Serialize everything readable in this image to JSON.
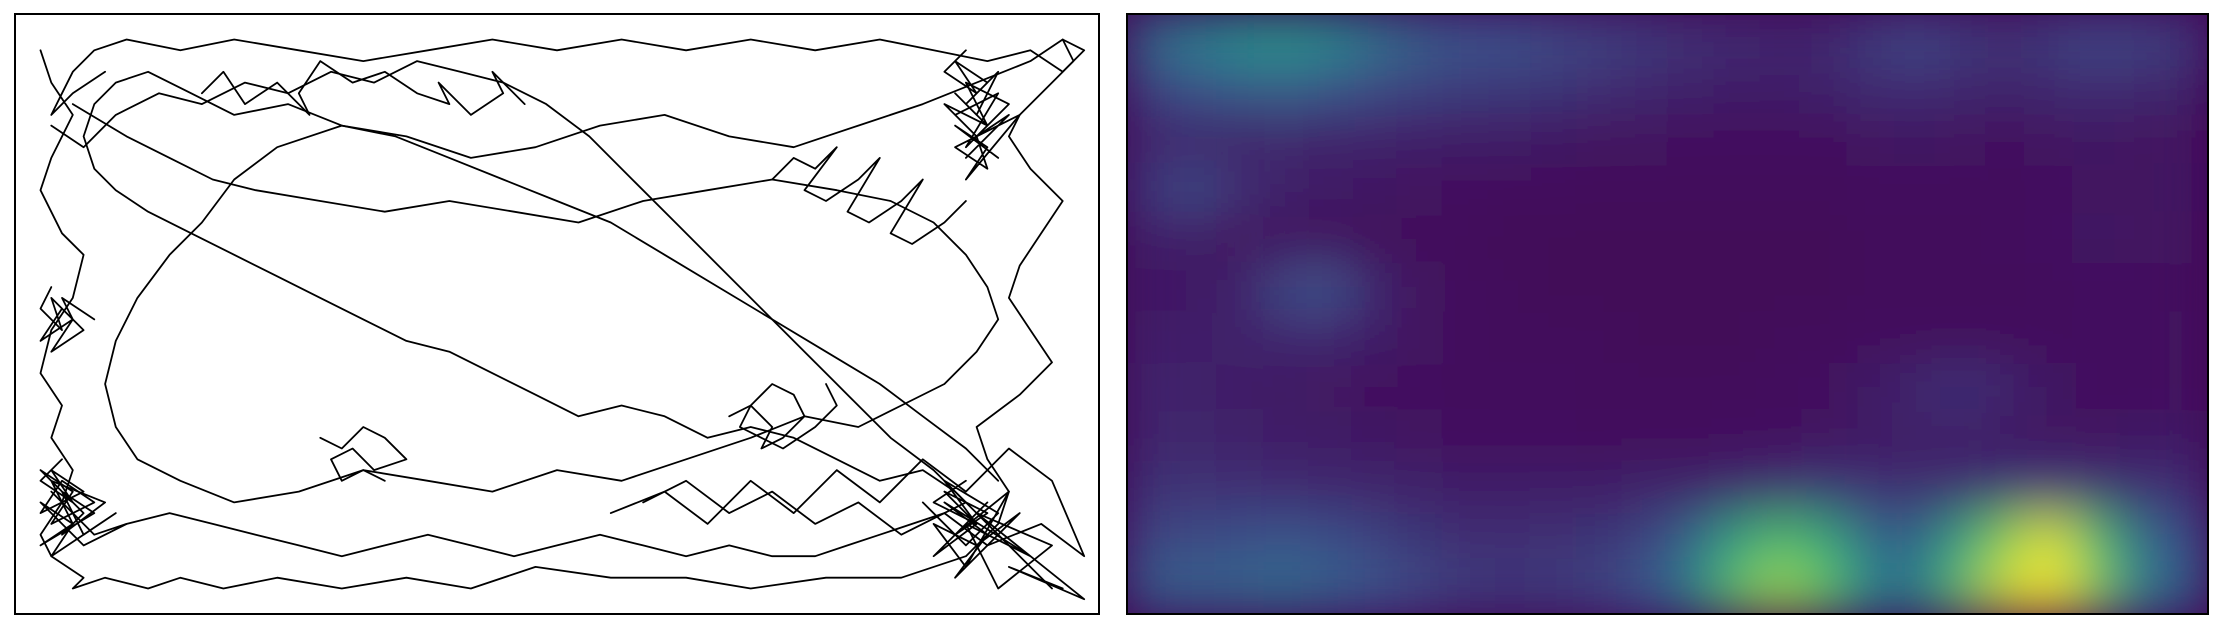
{
  "figure": {
    "background": "#ffffff",
    "frame_color": "#000000"
  },
  "chart_data": [
    {
      "type": "line",
      "panel": "trajectory",
      "axes_visible": false,
      "ticks_visible": false,
      "grid": false,
      "line_color": "#000000",
      "xlim": [
        0,
        100
      ],
      "ylim": [
        0,
        55
      ],
      "series": [
        {
          "x": [
            2,
            3,
            5,
            3,
            2,
            4,
            6,
            5,
            3,
            2,
            4,
            3,
            5,
            4,
            2,
            3,
            6,
            5,
            8,
            12,
            15,
            19,
            24,
            30,
            36,
            42,
            48,
            55,
            62,
            68,
            75,
            82,
            88,
            91,
            92,
            90,
            89,
            93,
            96,
            94,
            92,
            93,
            95,
            97,
            94,
            92,
            93,
            96,
            98,
            97,
            99,
            97,
            94,
            90,
            85,
            80,
            74,
            68,
            62,
            56,
            50,
            44,
            38,
            32,
            26,
            20,
            15,
            10,
            7,
            5,
            4,
            3,
            5,
            8
          ],
          "y": [
            52,
            49,
            46,
            42,
            39,
            35,
            33,
            29,
            26,
            22,
            19,
            16,
            13,
            10,
            7,
            5,
            3,
            2,
            3,
            2,
            3,
            2,
            3,
            2,
            3,
            2,
            4,
            3,
            3,
            2,
            3,
            3,
            5,
            8,
            11,
            14,
            17,
            20,
            23,
            26,
            29,
            32,
            35,
            38,
            41,
            44,
            46,
            49,
            51,
            53,
            52,
            50,
            52,
            51,
            52,
            53,
            52,
            53,
            52,
            53,
            52,
            53,
            52,
            51,
            52,
            53,
            52,
            53,
            52,
            50,
            48,
            46,
            48,
            50
          ]
        },
        {
          "x": [
            5,
            10,
            14,
            18,
            22,
            28,
            34,
            40,
            46,
            52,
            58,
            64,
            70,
            76,
            81,
            85,
            88,
            90,
            91,
            89,
            86,
            82,
            78,
            73,
            68,
            62,
            56,
            50,
            44,
            38,
            32,
            26,
            20,
            15,
            11,
            9,
            8,
            9,
            11,
            14,
            17,
            20,
            24,
            30,
            36,
            42,
            48,
            54,
            60,
            66,
            72,
            78,
            84,
            89,
            94,
            97
          ],
          "y": [
            47,
            44,
            42,
            40,
            39,
            38,
            37,
            38,
            37,
            36,
            38,
            39,
            40,
            39,
            38,
            36,
            33,
            30,
            27,
            24,
            21,
            19,
            17,
            18,
            16,
            14,
            12,
            13,
            11,
            12,
            13,
            11,
            10,
            12,
            14,
            17,
            21,
            25,
            29,
            33,
            36,
            40,
            43,
            45,
            44,
            42,
            43,
            45,
            46,
            44,
            43,
            45,
            47,
            49,
            51,
            53
          ]
        },
        {
          "x": [
            3,
            6,
            9,
            13,
            17,
            21,
            25,
            29,
            33,
            37,
            41,
            45,
            49,
            53,
            57,
            61,
            65,
            69,
            73,
            77,
            81,
            85,
            88,
            86,
            83,
            80,
            77,
            74,
            70,
            66,
            62,
            58,
            54,
            50,
            46,
            42,
            38,
            34,
            30,
            26,
            22,
            18,
            14,
            10,
            7,
            5,
            3
          ],
          "y": [
            45,
            43,
            46,
            48,
            47,
            49,
            48,
            50,
            49,
            51,
            50,
            49,
            47,
            44,
            40,
            36,
            32,
            28,
            24,
            20,
            16,
            13,
            10,
            9,
            8,
            7,
            6,
            5,
            5,
            6,
            5,
            6,
            7,
            6,
            5,
            6,
            7,
            6,
            5,
            6,
            7,
            8,
            9,
            8,
            7,
            9,
            11
          ]
        },
        {
          "x": [
            96,
            93,
            90,
            87,
            84,
            80,
            76,
            72,
            68,
            64,
            60,
            56,
            52,
            48,
            44,
            40,
            36,
            32,
            28,
            24,
            20,
            16,
            12,
            9,
            7,
            6,
            7,
            9,
            12,
            16,
            20,
            25,
            30,
            35,
            40,
            45,
            50,
            55,
            60,
            65,
            70,
            75,
            80,
            84,
            88,
            91
          ],
          "y": [
            2,
            5,
            8,
            11,
            13,
            12,
            14,
            16,
            17,
            16,
            18,
            19,
            18,
            20,
            22,
            24,
            25,
            27,
            29,
            31,
            33,
            35,
            37,
            39,
            41,
            44,
            47,
            49,
            50,
            48,
            46,
            47,
            45,
            44,
            42,
            40,
            38,
            36,
            33,
            30,
            27,
            24,
            21,
            18,
            15,
            12
          ]
        },
        {
          "x": [
            88,
            86,
            89,
            87,
            90,
            88,
            91,
            89,
            87,
            90,
            88,
            92,
            89,
            87,
            91,
            88,
            90,
            86,
            89,
            92,
            88,
            91,
            87,
            90,
            89,
            93,
            88,
            90,
            87,
            91
          ],
          "y": [
            52,
            50,
            48,
            51,
            49,
            47,
            50,
            46,
            48,
            45,
            49,
            47,
            44,
            46,
            48,
            43,
            45,
            47,
            44,
            46,
            42,
            45,
            43,
            41,
            44,
            46,
            40,
            43,
            45,
            42
          ]
        },
        {
          "x": [
            88,
            85,
            89,
            86,
            90,
            87,
            84,
            88,
            91,
            86,
            89,
            85,
            90,
            87,
            92,
            88,
            85,
            89,
            93,
            87,
            90,
            86,
            94,
            88,
            91,
            96,
            89,
            99,
            92,
            97
          ],
          "y": [
            12,
            10,
            8,
            11,
            9,
            7,
            10,
            6,
            9,
            12,
            8,
            5,
            10,
            7,
            11,
            4,
            8,
            6,
            9,
            3,
            7,
            10,
            5,
            8,
            2,
            6,
            9,
            1,
            4,
            2
          ]
        },
        {
          "x": [
            4,
            2,
            5,
            3,
            6,
            2,
            4,
            7,
            3,
            5,
            2,
            6,
            4,
            8,
            3,
            5,
            2,
            7,
            4,
            6,
            9,
            3,
            5,
            2,
            6,
            10
          ],
          "y": [
            14,
            12,
            10,
            13,
            11,
            9,
            12,
            10,
            8,
            11,
            13,
            9,
            7,
            10,
            12,
            8,
            6,
            9,
            11,
            7,
            9,
            5,
            8,
            10,
            6,
            8
          ]
        },
        {
          "x": [
            3,
            2,
            4,
            3,
            5,
            2,
            4,
            6,
            3,
            5,
            4,
            7
          ],
          "y": [
            30,
            28,
            26,
            29,
            27,
            25,
            28,
            26,
            24,
            27,
            29,
            27
          ]
        },
        {
          "x": [
            55,
            60,
            64,
            68,
            72,
            76,
            80,
            84,
            88,
            92,
            96,
            99,
            95,
            90,
            86,
            82,
            78,
            74,
            70,
            66,
            62,
            58
          ],
          "y": [
            9,
            11,
            8,
            12,
            9,
            13,
            10,
            14,
            11,
            15,
            12,
            5,
            8,
            6,
            9,
            7,
            10,
            8,
            11,
            9,
            12,
            10
          ]
        },
        {
          "x": [
            28,
            30,
            32,
            34,
            36,
            33,
            31,
            29,
            30,
            32,
            34
          ],
          "y": [
            16,
            15,
            17,
            16,
            14,
            13,
            15,
            14,
            12,
            13,
            12
          ]
        },
        {
          "x": [
            66,
            68,
            70,
            69,
            71,
            73,
            72,
            70,
            68,
            67,
            69,
            71,
            74,
            76,
            75
          ],
          "y": [
            18,
            19,
            17,
            15,
            16,
            18,
            20,
            21,
            19,
            17,
            16,
            15,
            17,
            19,
            21
          ]
        },
        {
          "x": [
            70,
            72,
            74,
            76,
            73,
            75,
            78,
            80,
            77,
            79,
            82,
            84,
            81,
            83,
            86,
            88
          ],
          "y": [
            40,
            42,
            41,
            43,
            39,
            38,
            40,
            42,
            37,
            36,
            38,
            40,
            35,
            34,
            36,
            38
          ]
        },
        {
          "x": [
            17,
            19,
            21,
            24,
            27,
            26,
            28,
            31,
            34,
            37,
            40,
            39,
            42,
            45,
            44,
            47
          ],
          "y": [
            48,
            50,
            47,
            49,
            46,
            48,
            51,
            49,
            50,
            48,
            47,
            49,
            46,
            48,
            50,
            47
          ]
        }
      ]
    },
    {
      "type": "heatmap",
      "panel": "occupancy",
      "axes_visible": false,
      "ticks_visible": false,
      "colorbar": false,
      "colormap": "viridis",
      "colors": [
        "#440154",
        "#3b528b",
        "#21918c",
        "#5ec962",
        "#fde725"
      ],
      "zlim": [
        0,
        1
      ],
      "x_bins": 24,
      "y_bins": 12,
      "values": [
        [
          0.35,
          0.42,
          0.5,
          0.52,
          0.48,
          0.38,
          0.3,
          0.25,
          0.25,
          0.22,
          0.2,
          0.18,
          0.15,
          0.13,
          0.12,
          0.12,
          0.18,
          0.22,
          0.18,
          0.15,
          0.18,
          0.22,
          0.2,
          0.18
        ],
        [
          0.2,
          0.25,
          0.28,
          0.3,
          0.26,
          0.22,
          0.2,
          0.18,
          0.17,
          0.16,
          0.14,
          0.12,
          0.1,
          0.09,
          0.09,
          0.1,
          0.13,
          0.14,
          0.12,
          0.11,
          0.12,
          0.14,
          0.12,
          0.11
        ],
        [
          0.12,
          0.1,
          0.1,
          0.11,
          0.1,
          0.1,
          0.09,
          0.08,
          0.08,
          0.07,
          0.06,
          0.06,
          0.05,
          0.05,
          0.05,
          0.05,
          0.06,
          0.07,
          0.06,
          0.05,
          0.06,
          0.07,
          0.06,
          0.06
        ],
        [
          0.18,
          0.22,
          0.15,
          0.1,
          0.08,
          0.07,
          0.06,
          0.05,
          0.04,
          0.04,
          0.03,
          0.03,
          0.03,
          0.03,
          0.03,
          0.03,
          0.04,
          0.04,
          0.04,
          0.04,
          0.05,
          0.06,
          0.06,
          0.07
        ],
        [
          0.1,
          0.08,
          0.06,
          0.05,
          0.04,
          0.03,
          0.03,
          0.03,
          0.02,
          0.02,
          0.02,
          0.02,
          0.02,
          0.02,
          0.02,
          0.02,
          0.03,
          0.03,
          0.03,
          0.04,
          0.05,
          0.07,
          0.06,
          0.06
        ],
        [
          0.08,
          0.07,
          0.1,
          0.22,
          0.25,
          0.12,
          0.06,
          0.04,
          0.03,
          0.02,
          0.02,
          0.02,
          0.02,
          0.02,
          0.02,
          0.02,
          0.03,
          0.03,
          0.03,
          0.03,
          0.04,
          0.05,
          0.05,
          0.05
        ],
        [
          0.1,
          0.09,
          0.1,
          0.12,
          0.12,
          0.09,
          0.06,
          0.04,
          0.03,
          0.03,
          0.03,
          0.02,
          0.02,
          0.02,
          0.03,
          0.03,
          0.04,
          0.04,
          0.04,
          0.04,
          0.04,
          0.05,
          0.05,
          0.06
        ],
        [
          0.12,
          0.1,
          0.08,
          0.07,
          0.06,
          0.05,
          0.05,
          0.04,
          0.04,
          0.04,
          0.03,
          0.03,
          0.03,
          0.03,
          0.04,
          0.05,
          0.08,
          0.12,
          0.16,
          0.12,
          0.07,
          0.05,
          0.05,
          0.06
        ],
        [
          0.12,
          0.11,
          0.1,
          0.09,
          0.08,
          0.07,
          0.06,
          0.05,
          0.05,
          0.05,
          0.04,
          0.04,
          0.04,
          0.05,
          0.05,
          0.06,
          0.07,
          0.08,
          0.08,
          0.07,
          0.06,
          0.06,
          0.07,
          0.08
        ],
        [
          0.16,
          0.15,
          0.14,
          0.13,
          0.12,
          0.11,
          0.1,
          0.09,
          0.09,
          0.09,
          0.09,
          0.1,
          0.1,
          0.12,
          0.14,
          0.16,
          0.15,
          0.13,
          0.14,
          0.16,
          0.17,
          0.15,
          0.14,
          0.14
        ],
        [
          0.22,
          0.22,
          0.24,
          0.26,
          0.24,
          0.2,
          0.16,
          0.14,
          0.14,
          0.15,
          0.16,
          0.2,
          0.32,
          0.55,
          0.68,
          0.6,
          0.35,
          0.3,
          0.55,
          0.8,
          0.95,
          0.7,
          0.35,
          0.25
        ],
        [
          0.3,
          0.3,
          0.32,
          0.34,
          0.3,
          0.26,
          0.22,
          0.18,
          0.17,
          0.18,
          0.2,
          0.26,
          0.4,
          0.72,
          0.85,
          0.75,
          0.45,
          0.4,
          0.7,
          0.92,
          1.0,
          0.8,
          0.42,
          0.3
        ]
      ]
    }
  ]
}
